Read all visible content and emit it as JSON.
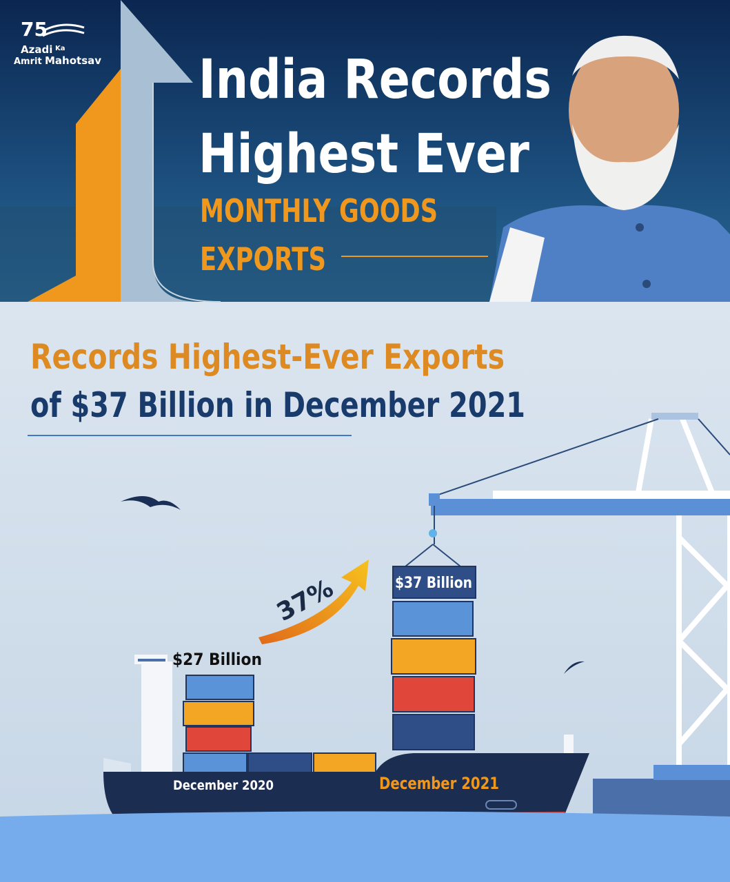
{
  "logo": {
    "number": "75",
    "line1": "Azadi",
    "ka": "Ka",
    "line2a": "Amrit",
    "line2b": "Mahotsav"
  },
  "banner": {
    "title_lines": [
      "India Records",
      "Highest Ever"
    ],
    "subtitle_lines": [
      "MONTHLY GOODS",
      "EXPORTS"
    ]
  },
  "headline": {
    "line1": "Records Highest-Ever Exports",
    "line2": "of $37 Billion in December 2021"
  },
  "illustration": {
    "growth_label": "37%",
    "stacks": [
      {
        "value_label": "$27 Billion",
        "period": "December 2020"
      },
      {
        "value_label": "$37 Billion",
        "period": "December 2021"
      }
    ]
  }
}
